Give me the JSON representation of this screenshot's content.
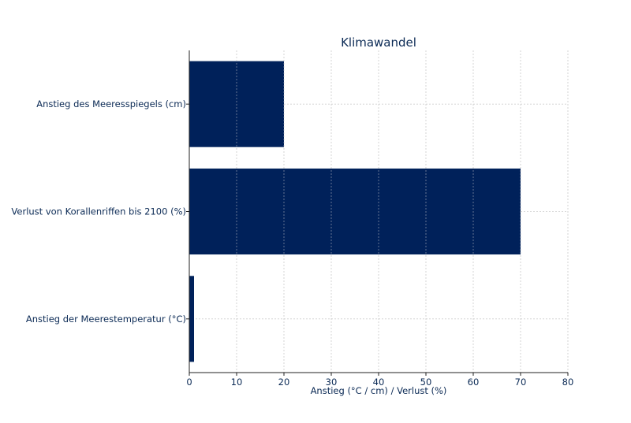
{
  "chart_data": {
    "type": "bar",
    "orientation": "horizontal",
    "title": "Klimawandel",
    "xlabel": "Anstieg (°C / cm) / Verlust (%)",
    "ylabel": "",
    "categories": [
      "Anstieg der Meerestemperatur (°C)",
      "Verlust von Korallenriffen bis 2100 (%)",
      "Anstieg des Meeresspiegels (cm)"
    ],
    "values": [
      1,
      70,
      20
    ],
    "xlim": [
      0,
      80
    ],
    "xticks": [
      0,
      10,
      20,
      30,
      40,
      50,
      60,
      70,
      80
    ],
    "grid": true,
    "legend": "none",
    "colors": {
      "bar": "#00215a",
      "text": "#0b2a55",
      "grid": "#cfcfcf",
      "axis": "#222222"
    }
  }
}
